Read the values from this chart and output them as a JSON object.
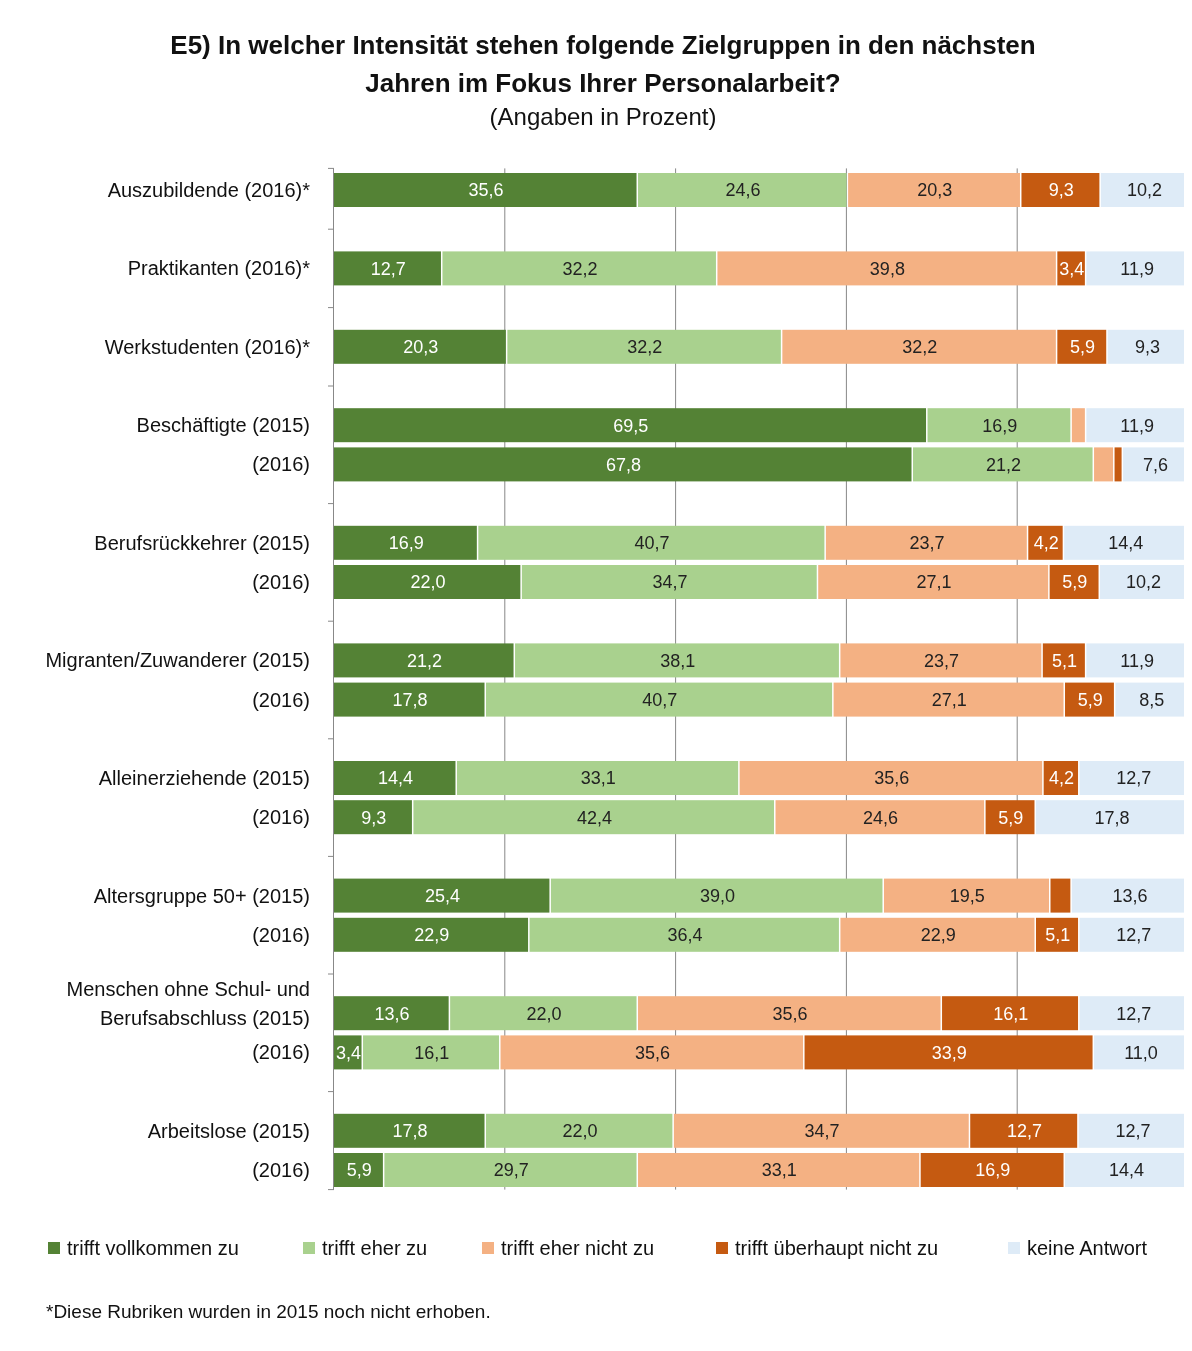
{
  "chart_data": {
    "type": "bar",
    "orientation": "horizontal",
    "stacked": true,
    "title": "E5) In welcher Intensität stehen folgende Zielgruppen in den nächsten Jahren im Fokus Ihrer Personalarbeit?",
    "subtitle": "(Angaben in Prozent)",
    "categories": [
      "Auszubildende (2016)*",
      null,
      "Praktikanten (2016)*",
      null,
      "Werkstudenten (2016)*",
      null,
      "Beschäftigte (2015)",
      "(2016)",
      null,
      "Berufsrückkehrer (2015)",
      "(2016)",
      null,
      "Migranten/Zuwanderer (2015)",
      "(2016)",
      null,
      "Alleinerziehende (2015)",
      "(2016)",
      null,
      "Altersgruppe 50+ (2015)",
      "(2016)",
      null,
      "Menschen ohne Schul- und Berufsabschluss (2015)",
      "(2016)",
      null,
      "Arbeitslose (2015)",
      "(2016)"
    ],
    "xlim": [
      0,
      100
    ],
    "xticks": [
      {
        "value": 20,
        "label": null
      },
      {
        "value": 40,
        "label": null
      },
      {
        "value": 60,
        "label": null
      },
      {
        "value": 80,
        "label": null
      }
    ],
    "tick_labels": "y",
    "grid": "x",
    "legend": "bottom",
    "series": [
      {
        "name": "trifft vollkommen zu",
        "color": "#548235",
        "values": [
          35.6,
          null,
          12.7,
          null,
          20.3,
          null,
          69.5,
          67.8,
          null,
          16.9,
          22.0,
          null,
          21.2,
          17.8,
          null,
          14.4,
          9.3,
          null,
          25.4,
          22.9,
          null,
          13.6,
          3.4,
          null,
          17.8,
          5.9
        ],
        "value_labels": [
          "35,6",
          null,
          "12,7",
          null,
          "20,3",
          null,
          "69,5",
          "67,8",
          null,
          "16,9",
          "22,0",
          null,
          "21,2",
          "17,8",
          null,
          "14,4",
          "9,3",
          null,
          "25,4",
          "22,9",
          null,
          "13,6",
          "3,4",
          null,
          "17,8",
          "5,9"
        ]
      },
      {
        "name": "trifft eher zu",
        "color": "#a9d18e",
        "values": [
          24.6,
          null,
          32.2,
          null,
          32.2,
          null,
          16.9,
          21.2,
          null,
          40.7,
          34.7,
          null,
          38.1,
          40.7,
          null,
          33.1,
          42.4,
          null,
          39.0,
          36.4,
          null,
          22.0,
          16.1,
          null,
          22.0,
          29.7
        ],
        "value_labels": [
          "24,6",
          null,
          "32,2",
          null,
          "32,2",
          null,
          "16,9",
          "21,2",
          null,
          "40,7",
          "34,7",
          null,
          "38,1",
          "40,7",
          null,
          "33,1",
          "42,4",
          null,
          "39,0",
          "36,4",
          null,
          "22,0",
          "16,1",
          null,
          "22,0",
          "29,7"
        ]
      },
      {
        "name": "trifft eher nicht zu",
        "color": "#f4b183",
        "values": [
          20.3,
          null,
          39.8,
          null,
          32.2,
          null,
          1.7,
          2.4,
          null,
          23.7,
          27.1,
          null,
          23.7,
          27.1,
          null,
          35.6,
          24.6,
          null,
          19.5,
          22.9,
          null,
          35.6,
          35.6,
          null,
          34.7,
          33.1
        ],
        "value_labels": [
          "20,3",
          null,
          "39,8",
          null,
          "32,2",
          null,
          null,
          null,
          null,
          "23,7",
          "27,1",
          null,
          "23,7",
          "27,1",
          null,
          "35,6",
          "24,6",
          null,
          "19,5",
          "22,9",
          null,
          "35,6",
          "35,6",
          null,
          "34,7",
          "33,1"
        ]
      },
      {
        "name": "trifft überhaupt nicht zu",
        "color": "#c55a11",
        "values": [
          9.3,
          null,
          3.4,
          null,
          5.9,
          null,
          null,
          1.0,
          null,
          4.2,
          5.9,
          null,
          5.1,
          5.9,
          null,
          4.2,
          5.9,
          null,
          2.5,
          5.1,
          null,
          16.1,
          33.9,
          null,
          12.7,
          16.9
        ],
        "value_labels": [
          "9,3",
          null,
          "3,4",
          null,
          "5,9",
          null,
          null,
          null,
          null,
          "4,2",
          "5,9",
          null,
          "5,1",
          "5,9",
          null,
          "4,2",
          "5,9",
          null,
          null,
          "5,1",
          null,
          "16,1",
          "33,9",
          null,
          "12,7",
          "16,9"
        ]
      },
      {
        "name": "keine Antwort",
        "color": "#deebf7",
        "values": [
          10.2,
          null,
          11.9,
          null,
          9.3,
          null,
          11.9,
          7.6,
          null,
          14.4,
          10.2,
          null,
          11.9,
          8.5,
          null,
          12.7,
          17.8,
          null,
          13.6,
          12.7,
          null,
          12.7,
          11.0,
          null,
          12.7,
          14.4
        ],
        "value_labels": [
          "10,2",
          null,
          "11,9",
          null,
          "9,3",
          null,
          "11,9",
          "7,6",
          null,
          "14,4",
          "10,2",
          null,
          "11,9",
          "8,5",
          null,
          "12,7",
          "17,8",
          null,
          "13,6",
          "12,7",
          null,
          "12,7",
          "11,0",
          null,
          "12,7",
          "14,4"
        ]
      }
    ],
    "annotations": [
      "*Diese Rubriken wurden in 2015 noch nicht erhoben."
    ]
  }
}
